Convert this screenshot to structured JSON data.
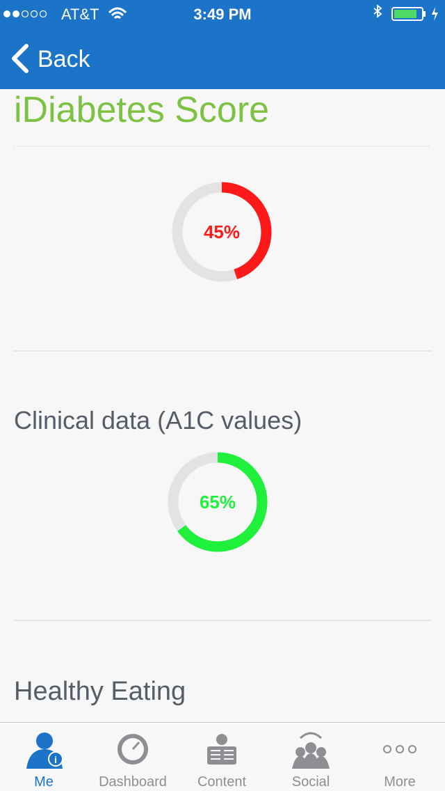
{
  "status_bar": {
    "carrier": "AT&T",
    "time": "3:49 PM"
  },
  "nav": {
    "back": "Back"
  },
  "header": {
    "title": "iDiabetes Score"
  },
  "gauges": [
    {
      "value": 45,
      "value_label": "45%",
      "color": "#ff1a1a"
    },
    {
      "title": "Clinical data (A1C values)",
      "value": 65,
      "value_label": "65%",
      "color": "#1ef03c"
    }
  ],
  "next_section": {
    "title": "Healthy Eating"
  },
  "tabs": [
    {
      "label": "Me"
    },
    {
      "label": "Dashboard"
    },
    {
      "label": "Content"
    },
    {
      "label": "Social"
    },
    {
      "label": "More"
    }
  ]
}
